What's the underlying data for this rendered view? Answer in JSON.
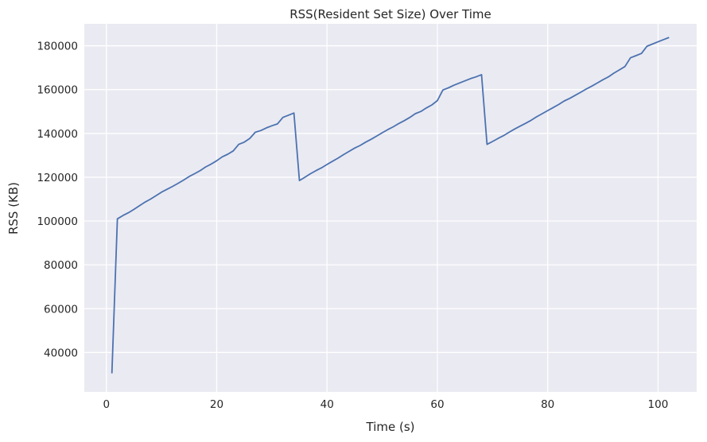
{
  "chart_data": {
    "type": "line",
    "title": "RSS(Resident Set Size) Over Time",
    "xlabel": "Time (s)",
    "ylabel": "RSS (KB)",
    "xlim": [
      -4,
      107
    ],
    "ylim": [
      22000,
      190000
    ],
    "xticks": [
      0,
      20,
      40,
      60,
      80,
      100
    ],
    "yticks": [
      40000,
      60000,
      80000,
      100000,
      120000,
      140000,
      160000,
      180000
    ],
    "grid": true,
    "colors": {
      "background": "#eaeaf2",
      "grid": "#ffffff",
      "line": "#4c72b0",
      "text": "#262626"
    },
    "series": [
      {
        "color": "#4c72b0",
        "x": [
          1,
          2,
          3,
          4,
          5,
          6,
          7,
          8,
          9,
          10,
          11,
          12,
          13,
          14,
          15,
          16,
          17,
          18,
          19,
          20,
          21,
          22,
          23,
          24,
          25,
          26,
          27,
          28,
          29,
          30,
          31,
          32,
          33,
          34,
          35,
          36,
          37,
          38,
          39,
          40,
          41,
          42,
          43,
          44,
          45,
          46,
          47,
          48,
          49,
          50,
          51,
          52,
          53,
          54,
          55,
          56,
          57,
          58,
          59,
          60,
          61,
          62,
          63,
          64,
          65,
          66,
          67,
          68,
          69,
          70,
          71,
          72,
          73,
          74,
          75,
          76,
          77,
          78,
          79,
          80,
          81,
          82,
          83,
          84,
          85,
          86,
          87,
          88,
          89,
          90,
          91,
          92,
          93,
          94,
          95,
          96,
          97,
          98,
          99,
          100,
          101,
          102
        ],
        "y": [
          30500,
          101000,
          102500,
          103800,
          105300,
          107000,
          108600,
          110000,
          111600,
          113200,
          114500,
          115800,
          117200,
          118700,
          120300,
          121600,
          123000,
          124700,
          126000,
          127500,
          129300,
          130500,
          132000,
          135000,
          136000,
          137700,
          140500,
          141300,
          142500,
          143500,
          144300,
          147300,
          148300,
          149300,
          118500,
          120000,
          121600,
          123000,
          124300,
          125800,
          127300,
          128700,
          130300,
          131800,
          133300,
          134500,
          136000,
          137300,
          138800,
          140300,
          141700,
          143000,
          144500,
          145800,
          147300,
          149000,
          150000,
          151600,
          153000,
          155000,
          159800,
          160800,
          162000,
          163000,
          164000,
          165000,
          165800,
          166800,
          135000,
          136300,
          137700,
          139000,
          140500,
          142000,
          143300,
          144600,
          146000,
          147600,
          149000,
          150400,
          151800,
          153200,
          154800,
          156000,
          157400,
          158800,
          160300,
          161600,
          163000,
          164500,
          165800,
          167500,
          169000,
          170500,
          174500,
          175500,
          176500,
          179800,
          180800,
          181800,
          182800,
          183800
        ]
      }
    ]
  }
}
